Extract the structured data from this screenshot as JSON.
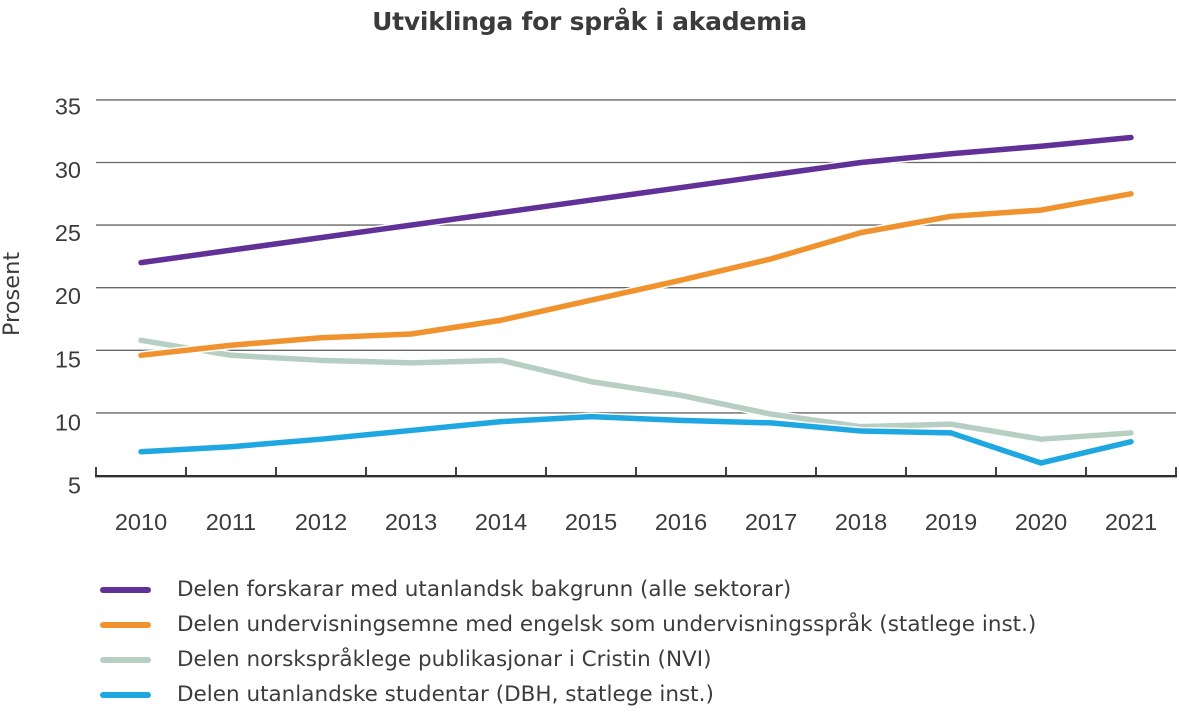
{
  "chart_data": {
    "type": "line",
    "title": "Utviklinga for språk i akademia",
    "ylabel": "Prosent",
    "xlabel": "",
    "x": [
      2010,
      2011,
      2012,
      2013,
      2014,
      2015,
      2016,
      2017,
      2018,
      2019,
      2020,
      2021
    ],
    "ylim": [
      5,
      35
    ],
    "yticks": [
      5,
      10,
      15,
      20,
      25,
      30,
      35
    ],
    "grid": "horizontal",
    "legend_position": "bottom-left",
    "series": [
      {
        "name": "Delen forskarar med utanlandsk bakgrunn (alle sektorar)",
        "color": "#613197",
        "values": [
          22.0,
          23.0,
          24.0,
          25.0,
          26.0,
          27.0,
          28.0,
          29.0,
          30.0,
          30.7,
          31.3,
          32.0
        ]
      },
      {
        "name": "Delen undervisningsemne med engelsk som undervisningsspråk (statlege inst.)",
        "color": "#f0922d",
        "values": [
          14.6,
          15.4,
          16.0,
          16.3,
          17.4,
          19.0,
          20.6,
          22.3,
          24.4,
          25.7,
          26.2,
          27.5
        ]
      },
      {
        "name": "Delen norskspråklege publikasjonar i Cristin (NVI)",
        "color": "#b6cfc2",
        "values": [
          15.8,
          14.6,
          14.2,
          14.0,
          14.2,
          12.5,
          11.4,
          9.9,
          8.9,
          9.1,
          7.9,
          8.4
        ]
      },
      {
        "name": "Delen utanlandske studentar (DBH, statlege inst.)",
        "color": "#1ea7e1",
        "values": [
          6.9,
          7.3,
          7.9,
          8.6,
          9.3,
          9.7,
          9.4,
          9.2,
          8.55,
          8.4,
          6.0,
          7.7
        ]
      }
    ]
  },
  "colors": {
    "background": "#ffffff",
    "text": "#3c3c3c",
    "gridline": "#676767",
    "axis": "#2f2f2f",
    "line_casing": "#ffffff"
  }
}
